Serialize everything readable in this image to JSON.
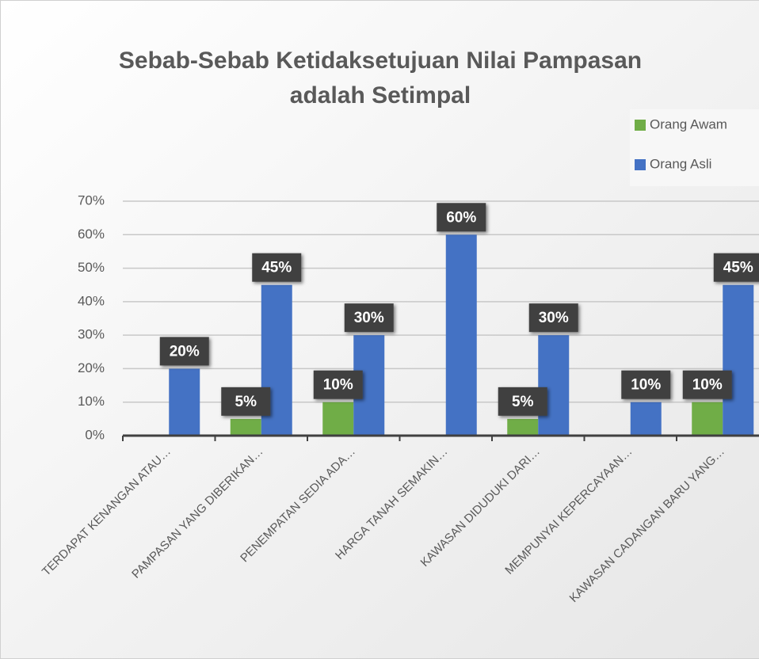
{
  "chart_data": {
    "type": "bar",
    "title": [
      "Sebab-Sebab Ketidaksetujuan Nilai Pampasan",
      "adalah Setimpal"
    ],
    "categories": [
      "TERDAPAT KENANGAN ATAU…",
      "PAMPASAN YANG DIBERIKAN…",
      "PENEMPATAN SEDIA ADA…",
      "HARGA TANAH SEMAKIN…",
      "KAWASAN DIDUDUKI DARI…",
      "MEMPUNYAI KEPERCAYAAN…",
      "KAWASAN CADANGAN BARU YANG…"
    ],
    "series": [
      {
        "name": "Orang Awam",
        "color": "#70ad47",
        "values": [
          null,
          5,
          10,
          null,
          5,
          null,
          10
        ],
        "value_labels": [
          null,
          "5%",
          "10%",
          null,
          "5%",
          null,
          "10%"
        ]
      },
      {
        "name": "Orang Asli",
        "color": "#4472c4",
        "values": [
          20,
          45,
          30,
          60,
          30,
          10,
          45
        ],
        "value_labels": [
          "20%",
          "45%",
          "30%",
          "60%",
          "30%",
          "10%",
          "45%"
        ]
      }
    ],
    "ylim": [
      0,
      70
    ],
    "yticks": [
      {
        "value": 0,
        "label": "0%"
      },
      {
        "value": 10,
        "label": "10%"
      },
      {
        "value": 20,
        "label": "20%"
      },
      {
        "value": 30,
        "label": "30%"
      },
      {
        "value": 40,
        "label": "40%"
      },
      {
        "value": 50,
        "label": "50%"
      },
      {
        "value": 60,
        "label": "60%"
      },
      {
        "value": 70,
        "label": "70%"
      }
    ],
    "grid": true,
    "legend": "top-right"
  }
}
